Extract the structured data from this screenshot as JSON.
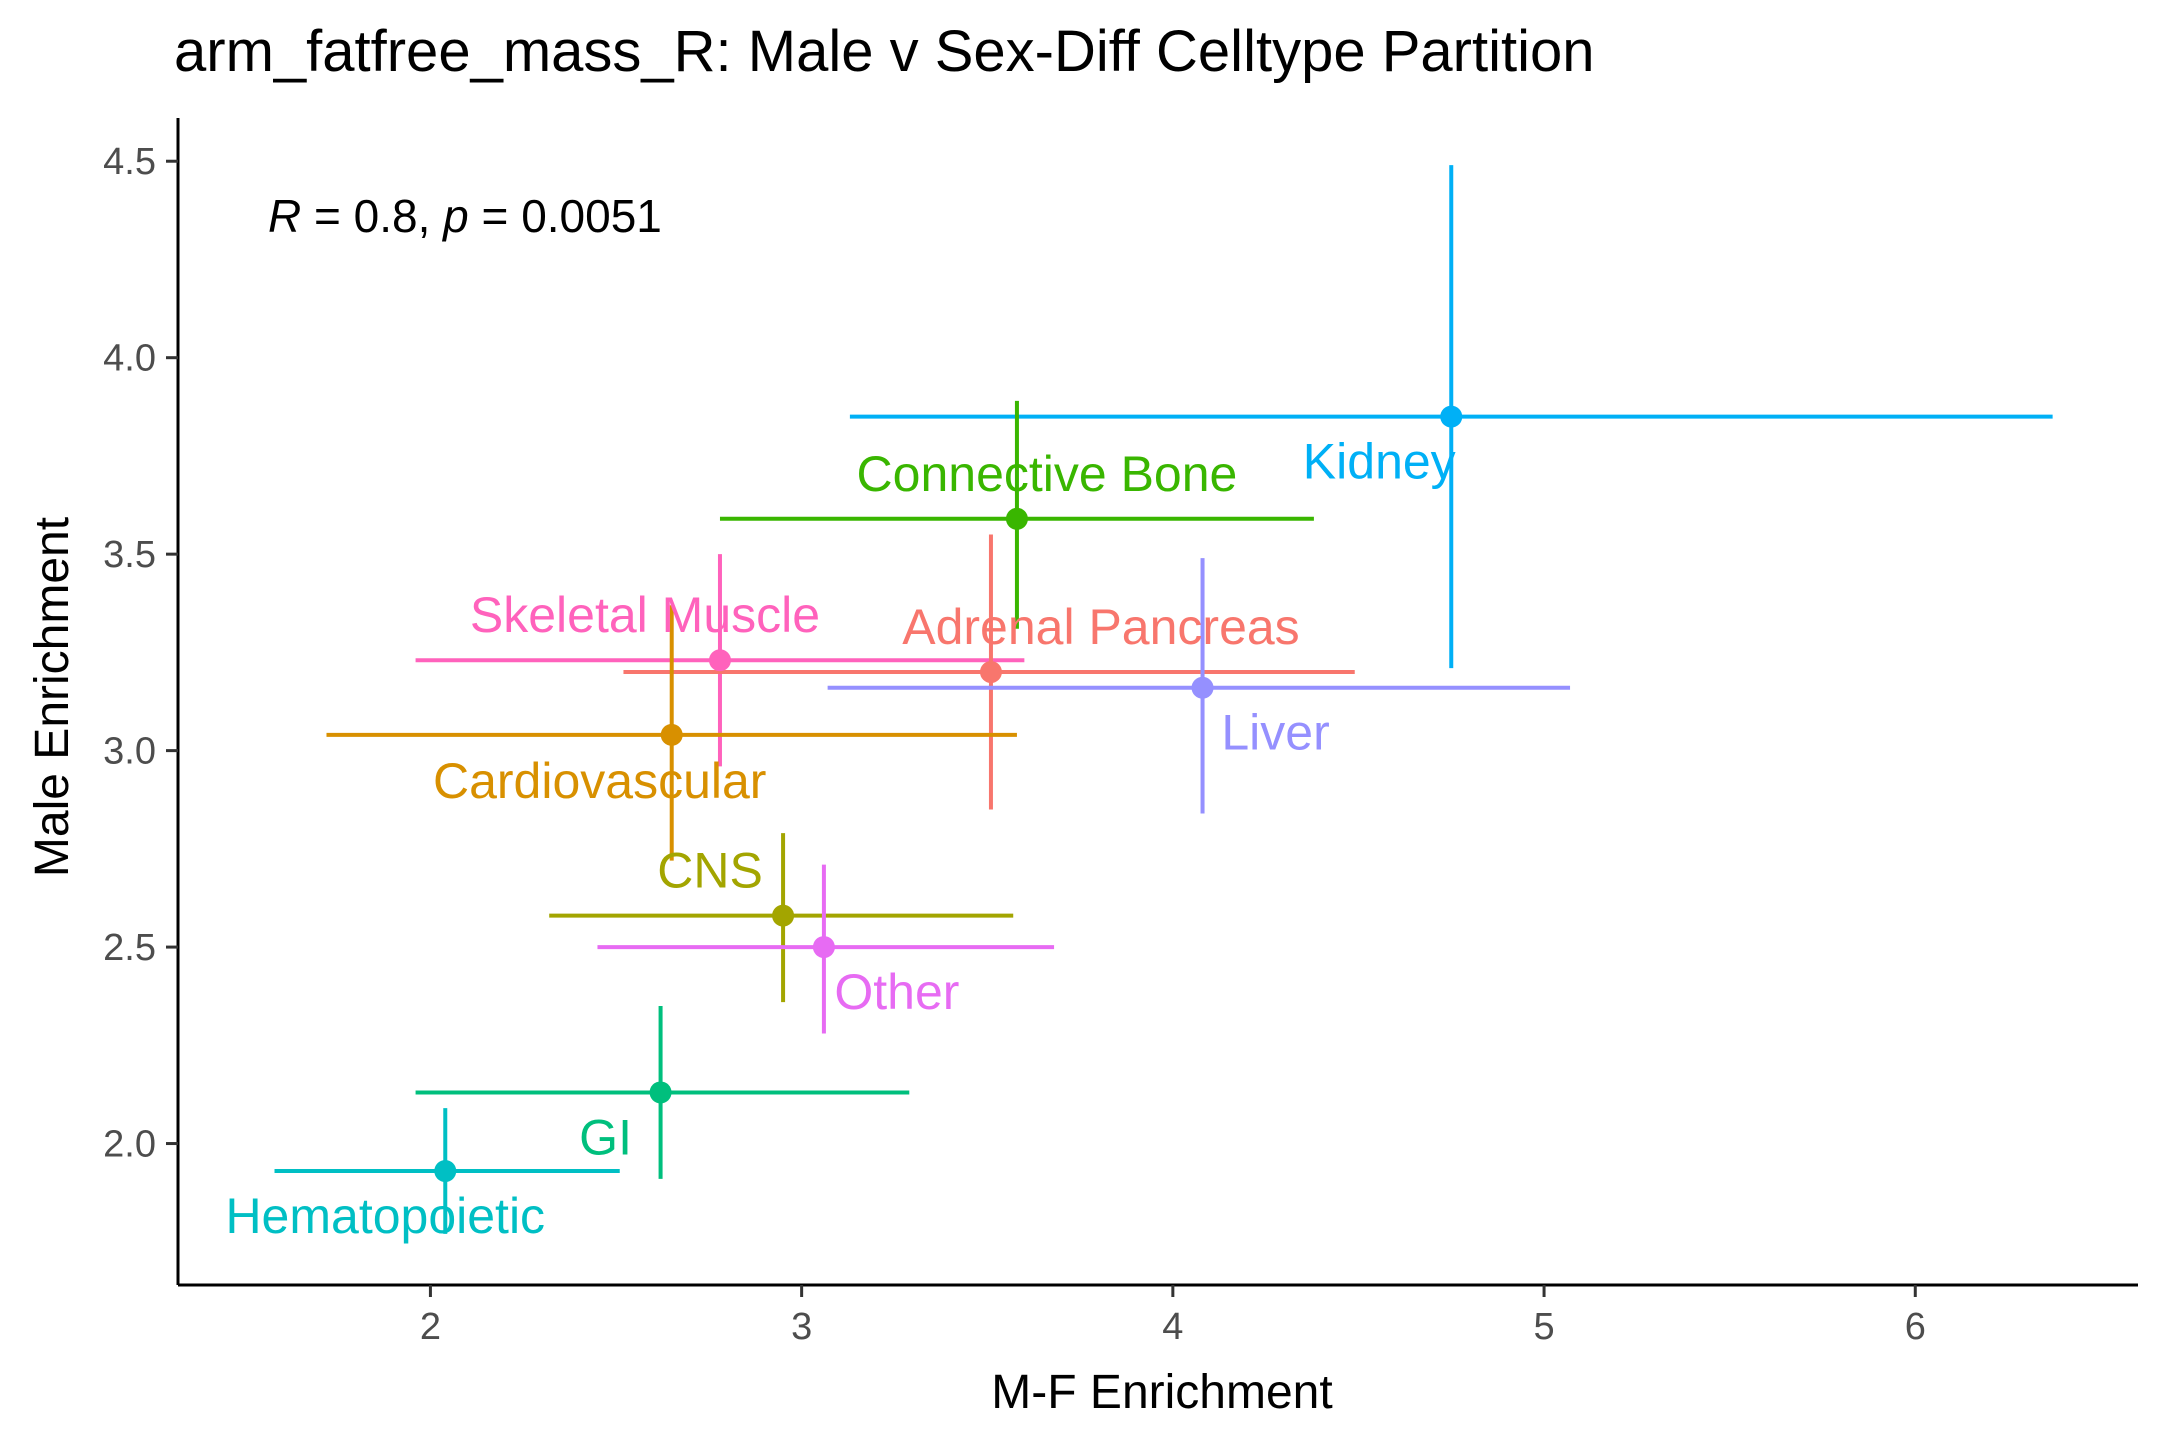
{
  "chart_data": {
    "type": "scatter",
    "title": "arm_fatfree_mass_R: Male v Sex-Diff Celltype Partition",
    "xlabel": "M-F Enrichment",
    "ylabel": "Male Enrichment",
    "xlim": [
      1.32,
      6.6
    ],
    "ylim": [
      1.64,
      4.61
    ],
    "xticks": [
      2,
      3,
      4,
      5,
      6
    ],
    "xtick_labels": [
      "2",
      "3",
      "4",
      "5",
      "6"
    ],
    "yticks": [
      2.0,
      2.5,
      3.0,
      3.5,
      4.0,
      4.5
    ],
    "ytick_labels": [
      "2.0",
      "2.5",
      "3.0",
      "3.5",
      "4.0",
      "4.5"
    ],
    "grid": false,
    "legend": "none",
    "annotation": {
      "r_label": "R",
      "r_text": " = 0.8, ",
      "p_label": "p",
      "p_text": " = 0.0051"
    },
    "points": [
      {
        "label": "Kidney",
        "x": 4.75,
        "y": 3.85,
        "xmin": 3.13,
        "xmax": 6.37,
        "ymin": 3.21,
        "ymax": 4.49,
        "color": "#00B0F6",
        "label_pos": "below-left"
      },
      {
        "label": "Connective Bone",
        "x": 3.58,
        "y": 3.59,
        "xmin": 2.78,
        "xmax": 4.38,
        "ymin": 3.31,
        "ymax": 3.89,
        "color": "#39B600",
        "label_pos": "above"
      },
      {
        "label": "Skeletal Muscle",
        "x": 2.78,
        "y": 3.23,
        "xmin": 1.96,
        "xmax": 3.6,
        "ymin": 2.96,
        "ymax": 3.5,
        "color": "#FF62BC",
        "label_pos": "above-left"
      },
      {
        "label": "Adrenal Pancreas",
        "x": 3.51,
        "y": 3.2,
        "xmin": 2.52,
        "xmax": 4.49,
        "ymin": 2.85,
        "ymax": 3.55,
        "color": "#F8766D",
        "label_pos": "above-right"
      },
      {
        "label": "Liver",
        "x": 4.08,
        "y": 3.16,
        "xmin": 3.07,
        "xmax": 5.07,
        "ymin": 2.84,
        "ymax": 3.49,
        "color": "#9590FF",
        "label_pos": "below-right"
      },
      {
        "label": "Cardiovascular",
        "x": 2.65,
        "y": 3.04,
        "xmin": 1.72,
        "xmax": 3.58,
        "ymin": 2.72,
        "ymax": 3.37,
        "color": "#D89000",
        "label_pos": "below-left"
      },
      {
        "label": "CNS",
        "x": 2.95,
        "y": 2.58,
        "xmin": 2.32,
        "xmax": 3.57,
        "ymin": 2.36,
        "ymax": 2.79,
        "color": "#A3A500",
        "label_pos": "above-left"
      },
      {
        "label": "Other",
        "x": 3.06,
        "y": 2.5,
        "xmin": 2.45,
        "xmax": 3.68,
        "ymin": 2.28,
        "ymax": 2.71,
        "color": "#E76BF3",
        "label_pos": "below-right"
      },
      {
        "label": "GI",
        "x": 2.62,
        "y": 2.13,
        "xmin": 1.96,
        "xmax": 3.29,
        "ymin": 1.91,
        "ymax": 2.35,
        "color": "#00BF7D",
        "label_pos": "below-left"
      },
      {
        "label": "Hematopoietic",
        "x": 2.04,
        "y": 1.93,
        "xmin": 1.58,
        "xmax": 2.51,
        "ymin": 1.77,
        "ymax": 2.09,
        "color": "#00BFC4",
        "label_pos": "below-left"
      }
    ]
  }
}
